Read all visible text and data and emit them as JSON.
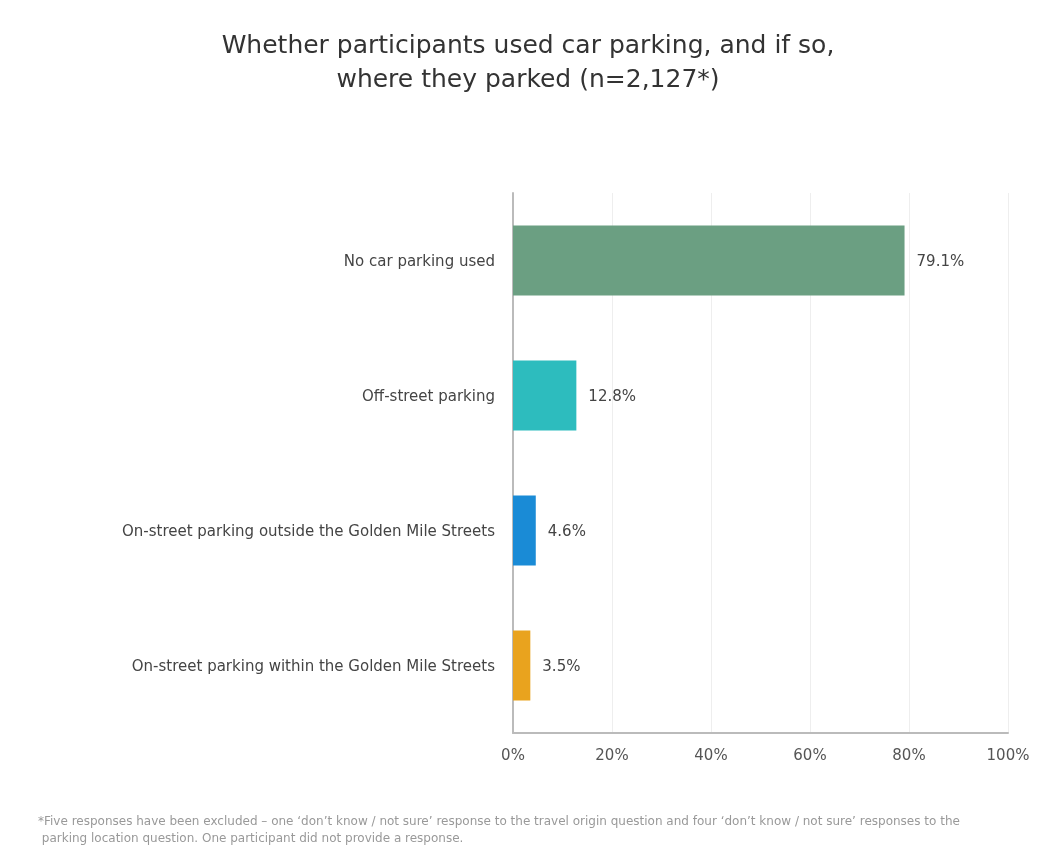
{
  "chart_data": {
    "type": "bar",
    "orientation": "horizontal",
    "title": "Whether participants used car parking, and if so,\nwhere they parked (n=2,127*)",
    "categories": [
      "No car parking used",
      "Off-street parking",
      "On-street parking outside the Golden Mile Streets",
      "On-street parking within the Golden Mile Streets"
    ],
    "values": [
      79.1,
      12.8,
      4.6,
      3.5
    ],
    "colors": [
      "#6b9f82",
      "#2dbcbe",
      "#1a8bd6",
      "#e9a31e"
    ],
    "value_labels": [
      "79.1%",
      "12.8%",
      "4.6%",
      "3.5%"
    ],
    "xlim": [
      0,
      100
    ],
    "xticks": [
      {
        "value": 0,
        "label": "0%"
      },
      {
        "value": 20,
        "label": "20%"
      },
      {
        "value": 40,
        "label": "40%"
      },
      {
        "value": 60,
        "label": "60%"
      },
      {
        "value": 80,
        "label": "80%"
      },
      {
        "value": 100,
        "label": "100%"
      }
    ],
    "grid": "x",
    "annotations": [
      "*Five responses have been excluded – one ‘don’t know / not sure’ response to the travel origin question and four ‘don’t know / not sure’ responses to the parking location question. One participant did not provide a response."
    ]
  }
}
